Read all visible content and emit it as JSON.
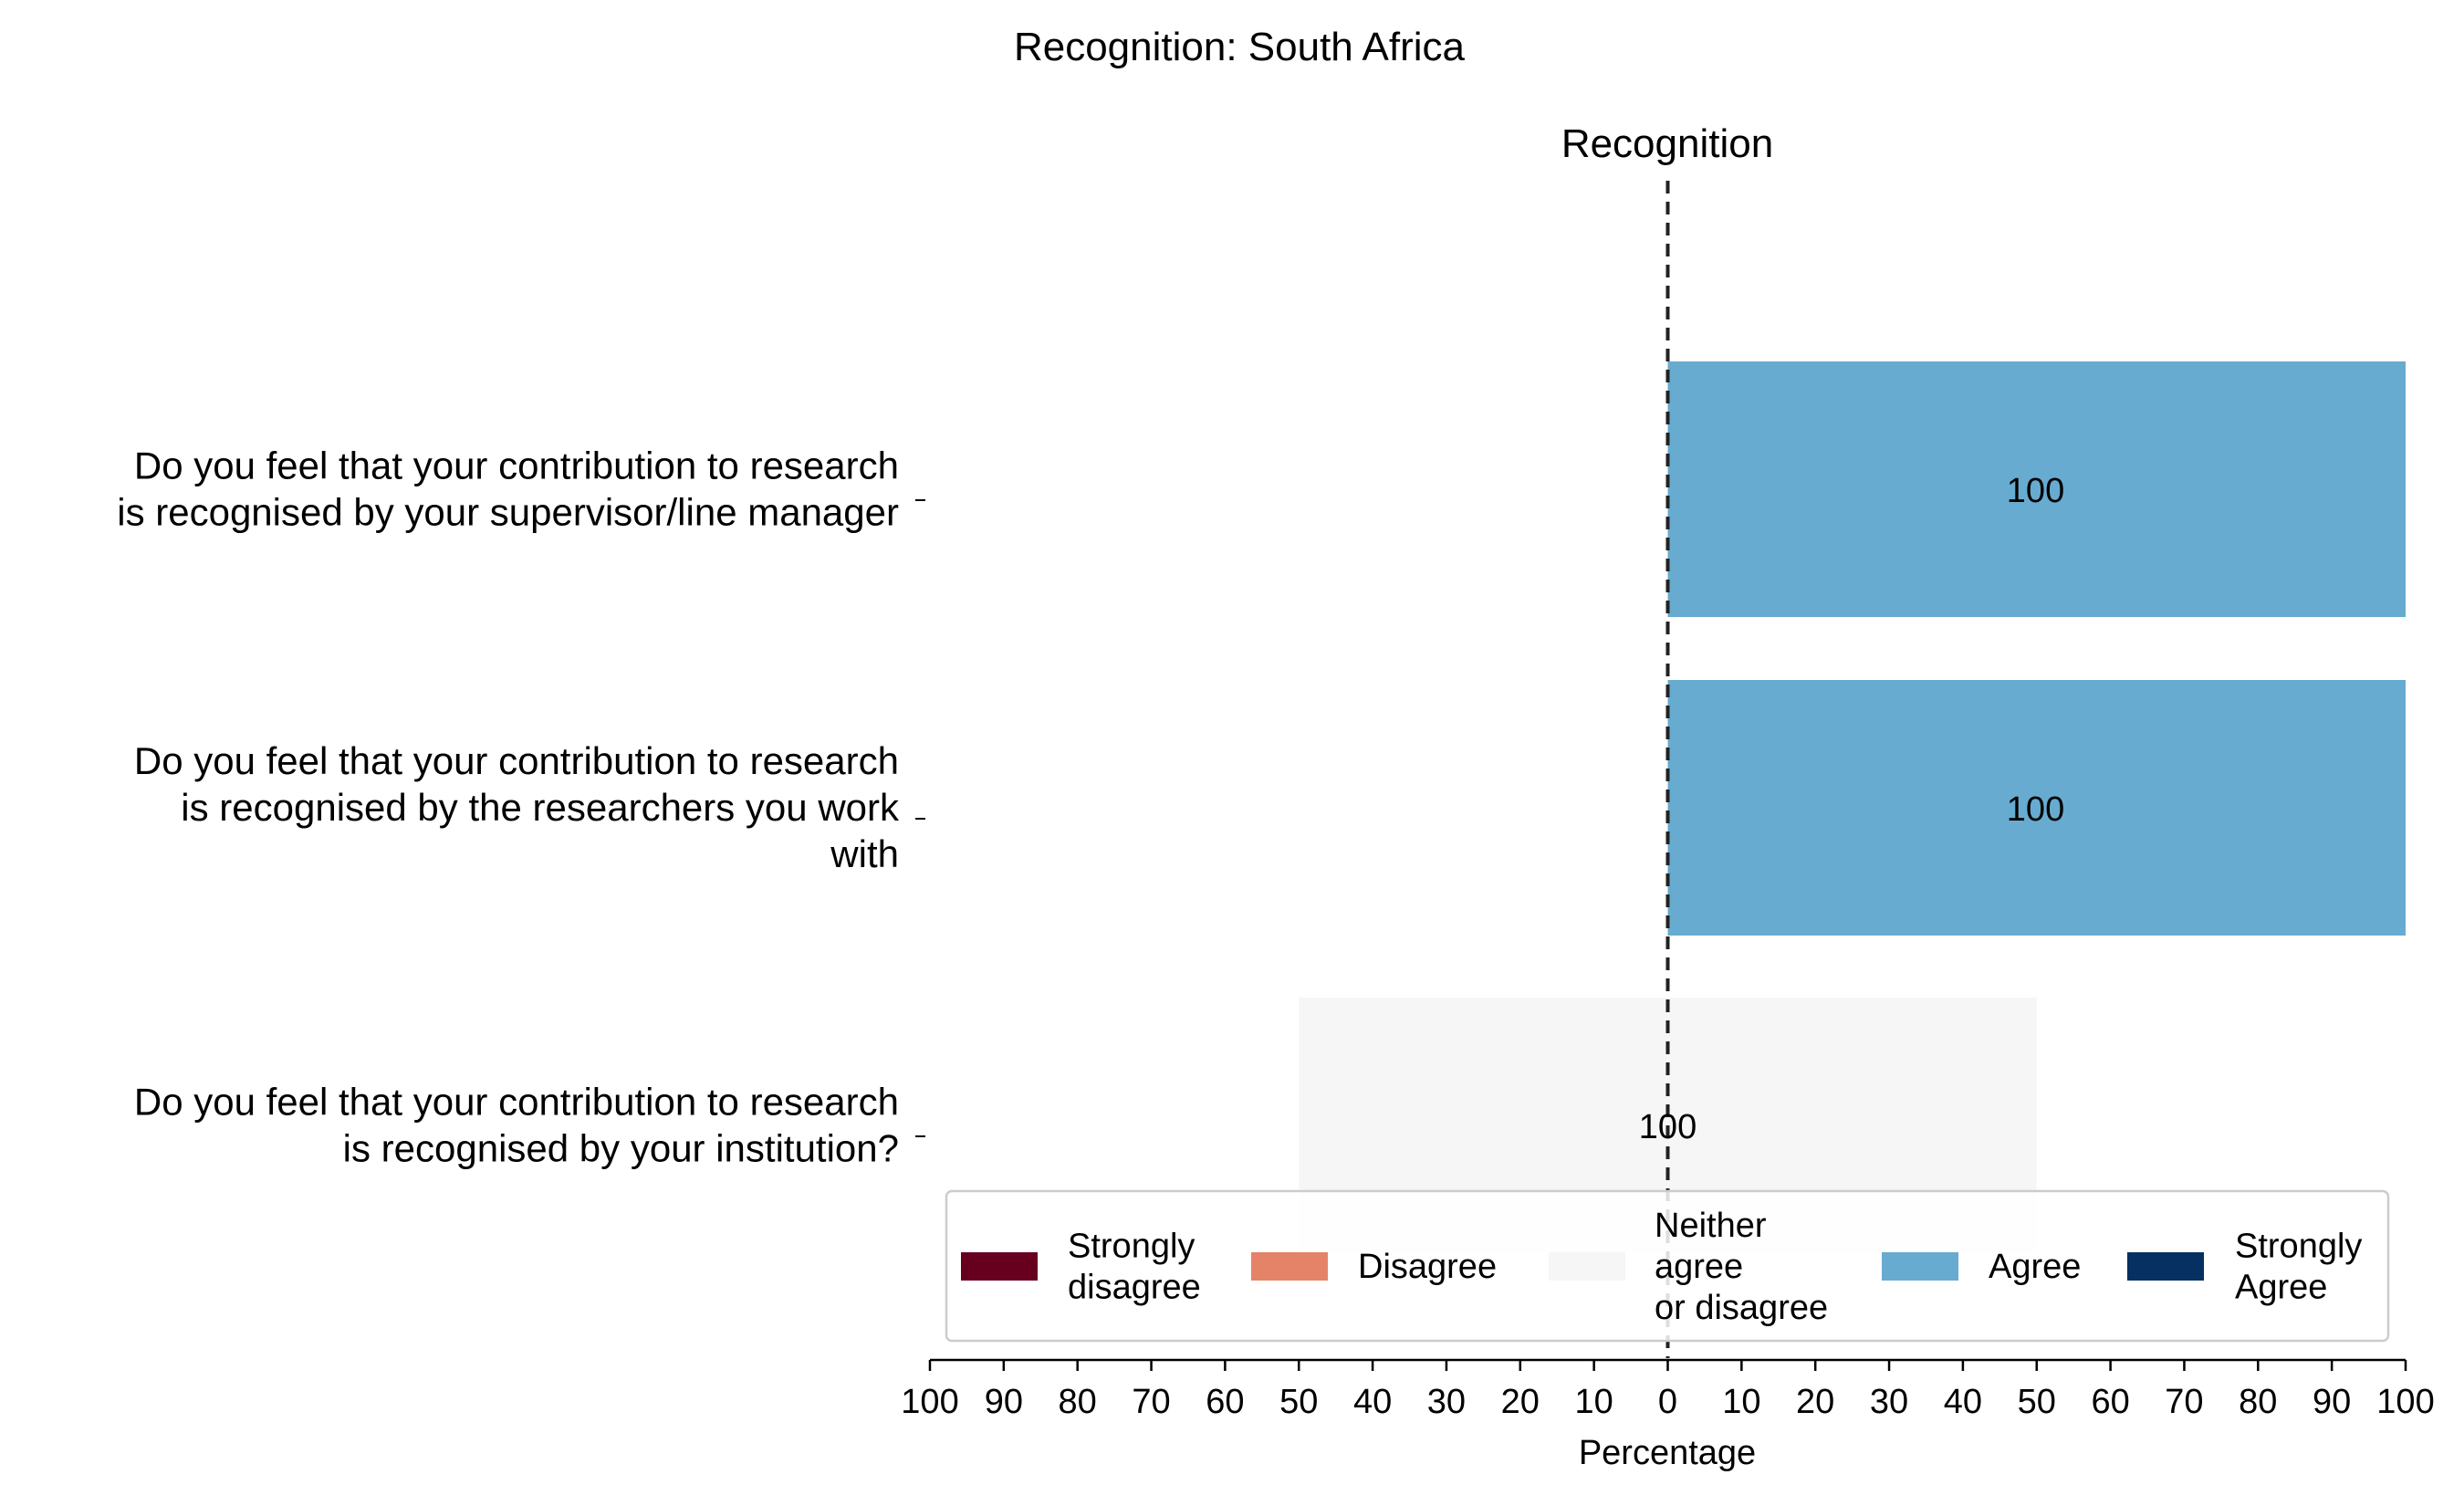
{
  "chart_data": {
    "type": "bar",
    "orientation": "horizontal-diverging",
    "title": "Recognition: South Africa",
    "subtitle": "Recognition",
    "xlabel": "Percentage",
    "xlim": [
      -100,
      100
    ],
    "xticks": [
      -100,
      -90,
      -80,
      -70,
      -60,
      -50,
      -40,
      -30,
      -20,
      -10,
      0,
      10,
      20,
      30,
      40,
      50,
      60,
      70,
      80,
      90,
      100
    ],
    "xtick_labels": [
      "100",
      "90",
      "80",
      "70",
      "60",
      "50",
      "40",
      "30",
      "20",
      "10",
      "0",
      "10",
      "20",
      "30",
      "40",
      "50",
      "60",
      "70",
      "80",
      "90",
      "100"
    ],
    "categories": [
      {
        "lines": [
          "Do you feel that your contribution to research",
          "is recognised by your supervisor/line manager"
        ]
      },
      {
        "lines": [
          "Do you feel that your contribution to research",
          "is recognised by the researchers you work",
          "with"
        ]
      },
      {
        "lines": [
          "Do you feel that your contribution to research",
          "is recognised by your institution?"
        ]
      }
    ],
    "series": [
      {
        "name": [
          "Strongly",
          "disagree"
        ],
        "color": "#67001f",
        "values": [
          0,
          0,
          0
        ]
      },
      {
        "name": [
          "Disagree"
        ],
        "color": "#e58368",
        "values": [
          0,
          0,
          0
        ]
      },
      {
        "name": [
          "Neither",
          "agree",
          "or disagree"
        ],
        "color": "#f5f6f5",
        "values": [
          0,
          0,
          100
        ]
      },
      {
        "name": [
          "Agree"
        ],
        "color": "#67abd0",
        "values": [
          100,
          100,
          0
        ]
      },
      {
        "name": [
          "Strongly",
          "Agree"
        ],
        "color": "#053061",
        "values": [
          0,
          0,
          0
        ]
      }
    ],
    "data_labels": [
      "100",
      "100",
      "100"
    ],
    "center_line": "dashed at 0",
    "legend_placement": "lower-center, single row"
  }
}
